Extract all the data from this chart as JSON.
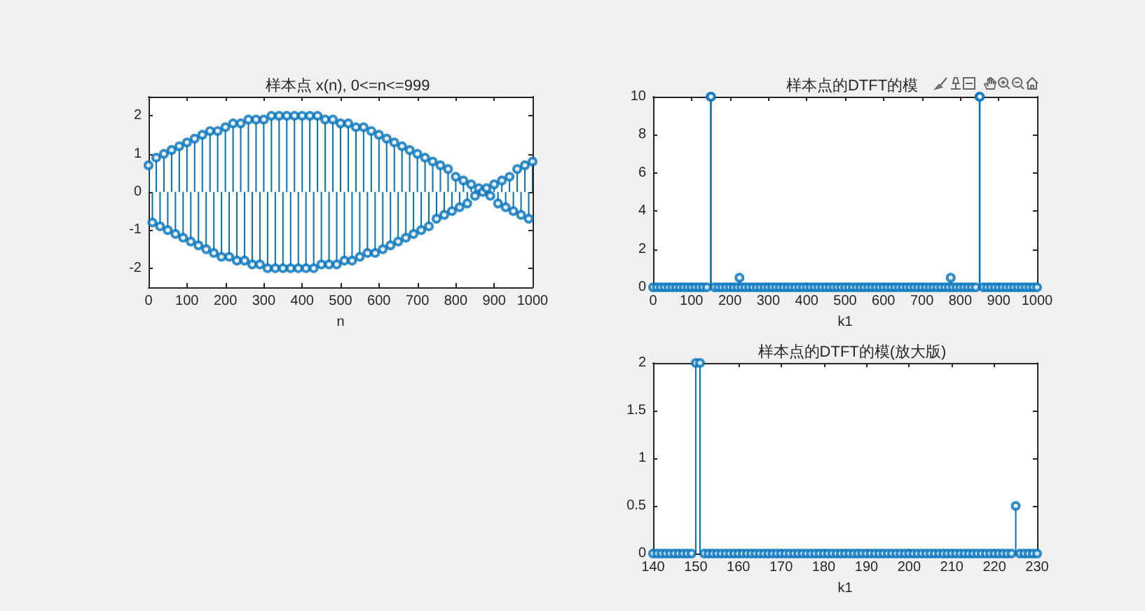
{
  "chart_data": [
    {
      "type": "lollipop",
      "title": "样本点 x(n), 0<=n<=999",
      "xlabel": "n",
      "color": "#0072bd",
      "marker": "circle",
      "x": [
        0,
        10,
        20,
        30,
        40,
        50,
        60,
        70,
        80,
        90,
        100,
        110,
        120,
        130,
        140,
        150,
        160,
        170,
        180,
        190,
        200,
        210,
        220,
        230,
        240,
        250,
        260,
        270,
        280,
        290,
        300,
        310,
        320,
        330,
        340,
        350,
        360,
        370,
        380,
        390,
        400,
        410,
        420,
        430,
        440,
        450,
        460,
        470,
        480,
        490,
        500,
        510,
        520,
        530,
        540,
        550,
        560,
        570,
        580,
        590,
        600,
        610,
        620,
        630,
        640,
        650,
        660,
        670,
        680,
        690,
        700,
        710,
        720,
        730,
        740,
        750,
        760,
        770,
        780,
        790,
        800,
        810,
        820,
        830,
        840,
        850,
        860,
        870,
        880,
        890,
        900,
        910,
        920,
        930,
        940,
        950,
        960,
        970,
        980,
        990,
        1000
      ],
      "values": [
        0.7,
        -0.8,
        0.9,
        -0.9,
        1.0,
        -1.0,
        1.1,
        -1.1,
        1.2,
        -1.2,
        1.3,
        -1.3,
        1.4,
        -1.4,
        1.5,
        -1.5,
        1.6,
        -1.6,
        1.6,
        -1.7,
        1.7,
        -1.7,
        1.8,
        -1.8,
        1.8,
        -1.8,
        1.9,
        -1.9,
        1.9,
        -1.9,
        1.9,
        -2.0,
        2.0,
        -2.0,
        2.0,
        -2.0,
        2.0,
        -2.0,
        2.0,
        -2.0,
        2.0,
        -2.0,
        2.0,
        -2.0,
        2.0,
        -1.9,
        1.9,
        -1.9,
        1.9,
        -1.9,
        1.8,
        -1.8,
        1.8,
        -1.8,
        1.7,
        -1.7,
        1.7,
        -1.6,
        1.6,
        -1.6,
        1.5,
        -1.5,
        1.4,
        -1.4,
        1.3,
        -1.3,
        1.2,
        -1.2,
        1.1,
        -1.1,
        1.0,
        -1.0,
        0.9,
        -0.9,
        0.8,
        -0.7,
        0.7,
        -0.6,
        0.6,
        -0.5,
        0.4,
        -0.4,
        0.3,
        -0.3,
        0.2,
        -0.1,
        0.1,
        0,
        0.1,
        -0.1,
        0.2,
        -0.3,
        0.3,
        -0.4,
        0.4,
        -0.5,
        0.6,
        -0.6,
        0.7,
        -0.7,
        0.8
      ],
      "xlim": [
        0,
        1000
      ],
      "xticks": [
        0,
        100,
        200,
        300,
        400,
        500,
        600,
        700,
        800,
        900,
        1000
      ],
      "ylim": [
        -2.5,
        2.5
      ],
      "yticks": [
        -2,
        -1,
        0,
        1,
        2
      ]
    },
    {
      "type": "lollipop",
      "title": "样本点的DTFT的模",
      "xlabel": "k1",
      "color": "#0072bd",
      "marker": "circle",
      "x": [
        0,
        10,
        20,
        30,
        40,
        50,
        60,
        70,
        80,
        90,
        100,
        110,
        120,
        130,
        140,
        150,
        151,
        160,
        170,
        180,
        190,
        200,
        210,
        220,
        225,
        230,
        240,
        250,
        260,
        270,
        280,
        290,
        300,
        310,
        320,
        330,
        340,
        350,
        360,
        370,
        380,
        390,
        400,
        410,
        420,
        430,
        440,
        450,
        460,
        470,
        480,
        490,
        500,
        510,
        520,
        530,
        540,
        550,
        560,
        570,
        580,
        590,
        600,
        610,
        620,
        630,
        640,
        650,
        660,
        670,
        680,
        690,
        700,
        710,
        720,
        730,
        740,
        750,
        760,
        770,
        775,
        780,
        790,
        800,
        810,
        820,
        830,
        840,
        850,
        851,
        860,
        870,
        880,
        890,
        900,
        910,
        920,
        930,
        940,
        950,
        960,
        970,
        980,
        990,
        1000
      ],
      "values": [
        0,
        0,
        0,
        0,
        0,
        0,
        0,
        0,
        0,
        0,
        0,
        0,
        0,
        0,
        0,
        10,
        10,
        0,
        0,
        0,
        0,
        0,
        0,
        0,
        0.5,
        0,
        0,
        0,
        0,
        0,
        0,
        0,
        0,
        0,
        0,
        0,
        0,
        0,
        0,
        0,
        0,
        0,
        0,
        0,
        0,
        0,
        0,
        0,
        0,
        0,
        0,
        0,
        0,
        0,
        0,
        0,
        0,
        0,
        0,
        0,
        0,
        0,
        0,
        0,
        0,
        0,
        0,
        0,
        0,
        0,
        0,
        0,
        0,
        0,
        0,
        0,
        0,
        0,
        0,
        0,
        0.5,
        0,
        0,
        0,
        0,
        0,
        0,
        0,
        10,
        10,
        0,
        0,
        0,
        0,
        0,
        0,
        0,
        0,
        0,
        0,
        0,
        0,
        0,
        0,
        0
      ],
      "xlim": [
        0,
        1000
      ],
      "xticks": [
        0,
        100,
        200,
        300,
        400,
        500,
        600,
        700,
        800,
        900,
        1000
      ],
      "ylim": [
        0,
        10
      ],
      "yticks": [
        0,
        2,
        4,
        6,
        8,
        10
      ]
    },
    {
      "type": "lollipop",
      "title": "样本点的DTFT的模(放大版)",
      "xlabel": "k1",
      "color": "#0072bd",
      "marker": "circle",
      "x": [
        140,
        141,
        142,
        143,
        144,
        145,
        146,
        147,
        148,
        149,
        150,
        151,
        152,
        153,
        154,
        155,
        156,
        157,
        158,
        159,
        160,
        161,
        162,
        163,
        164,
        165,
        166,
        167,
        168,
        169,
        170,
        171,
        172,
        173,
        174,
        175,
        176,
        177,
        178,
        179,
        180,
        181,
        182,
        183,
        184,
        185,
        186,
        187,
        188,
        189,
        190,
        191,
        192,
        193,
        194,
        195,
        196,
        197,
        198,
        199,
        200,
        201,
        202,
        203,
        204,
        205,
        206,
        207,
        208,
        209,
        210,
        211,
        212,
        213,
        214,
        215,
        216,
        217,
        218,
        219,
        220,
        221,
        222,
        223,
        224,
        225,
        226,
        227,
        228,
        229,
        230
      ],
      "values": [
        0,
        0,
        0,
        0,
        0,
        0,
        0,
        0,
        0,
        0,
        2,
        2,
        0,
        0,
        0,
        0,
        0,
        0,
        0,
        0,
        0,
        0,
        0,
        0,
        0,
        0,
        0,
        0,
        0,
        0,
        0,
        0,
        0,
        0,
        0,
        0,
        0,
        0,
        0,
        0,
        0,
        0,
        0,
        0,
        0,
        0,
        0,
        0,
        0,
        0,
        0,
        0,
        0,
        0,
        0,
        0,
        0,
        0,
        0,
        0,
        0,
        0,
        0,
        0,
        0,
        0,
        0,
        0,
        0,
        0,
        0,
        0,
        0,
        0,
        0,
        0,
        0,
        0,
        0,
        0,
        0,
        0,
        0,
        0,
        0,
        0.5,
        0,
        0,
        0,
        0,
        0
      ],
      "xlim": [
        140,
        230
      ],
      "xticks": [
        140,
        150,
        160,
        170,
        180,
        190,
        200,
        210,
        220,
        230
      ],
      "ylim": [
        0,
        2
      ],
      "yticks": [
        0,
        0.5,
        1,
        1.5,
        2
      ]
    }
  ]
}
